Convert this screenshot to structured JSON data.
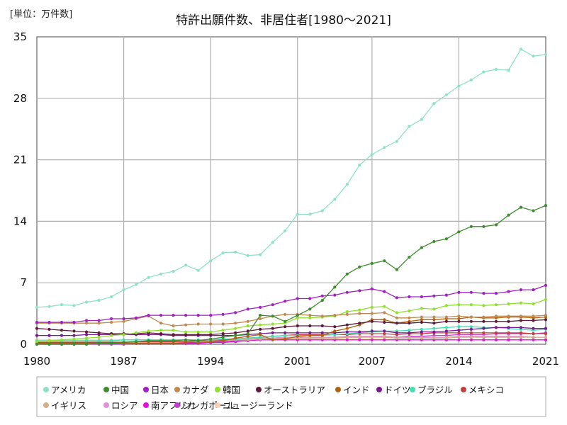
{
  "unit_label": "[単位：万件数]",
  "title": "特許出願件数、非居住者[1980～2021]",
  "chart_data": {
    "type": "line",
    "title": "特許出願件数、非居住者[1980～2021]",
    "unit": "[単位：万件数]",
    "xlabel": "",
    "ylabel": "",
    "xlim": [
      1980,
      2021
    ],
    "ylim": [
      0,
      35
    ],
    "grid": true,
    "legend_position": "bottom",
    "x_ticks": [
      1980,
      1987,
      1994,
      2001,
      2007,
      2014,
      2021
    ],
    "y_ticks": [
      0,
      7,
      14,
      21,
      28,
      35
    ],
    "x": [
      1980,
      1981,
      1982,
      1983,
      1984,
      1985,
      1986,
      1987,
      1988,
      1989,
      1990,
      1991,
      1992,
      1993,
      1994,
      1995,
      1996,
      1997,
      1998,
      1999,
      2000,
      2001,
      2002,
      2003,
      2004,
      2005,
      2006,
      2007,
      2008,
      2009,
      2010,
      2011,
      2012,
      2013,
      2014,
      2015,
      2016,
      2017,
      2018,
      2019,
      2020,
      2021
    ],
    "series": [
      {
        "name": "アメリカ",
        "color": "#8fe3c4",
        "values": [
          4.2,
          4.3,
          4.5,
          4.4,
          4.8,
          5.0,
          5.4,
          6.2,
          6.8,
          7.6,
          8.0,
          8.3,
          9.0,
          8.4,
          9.5,
          10.4,
          10.5,
          10.1,
          10.2,
          11.6,
          12.9,
          14.8,
          14.8,
          15.2,
          16.5,
          18.2,
          20.4,
          21.6,
          22.4,
          23.1,
          24.8,
          25.6,
          27.4,
          28.4,
          29.4,
          30.1,
          31.0,
          31.3,
          31.2,
          33.6,
          32.8,
          33.0
        ]
      },
      {
        "name": "中国",
        "color": "#3d8c2e",
        "values": [
          0.0,
          0.0,
          0.0,
          0.0,
          0.0,
          0.1,
          0.1,
          0.2,
          0.3,
          0.4,
          0.4,
          0.4,
          0.5,
          0.4,
          0.6,
          0.8,
          1.0,
          1.2,
          3.3,
          3.2,
          2.6,
          3.3,
          4.0,
          5.0,
          6.5,
          8.0,
          8.8,
          9.2,
          9.5,
          8.5,
          9.9,
          11.0,
          11.7,
          12.0,
          12.8,
          13.4,
          13.4,
          13.6,
          14.7,
          15.6,
          15.2,
          15.8
        ]
      },
      {
        "name": "日本",
        "color": "#a020c0",
        "values": [
          2.5,
          2.5,
          2.5,
          2.5,
          2.7,
          2.7,
          2.9,
          2.9,
          3.0,
          3.3,
          3.3,
          3.3,
          3.3,
          3.3,
          3.3,
          3.4,
          3.6,
          4.0,
          4.2,
          4.5,
          4.9,
          5.2,
          5.2,
          5.5,
          5.6,
          5.9,
          6.1,
          6.3,
          6.0,
          5.3,
          5.4,
          5.4,
          5.5,
          5.6,
          5.9,
          5.9,
          5.8,
          5.8,
          6.0,
          6.2,
          6.2,
          6.7
        ]
      },
      {
        "name": "カナダ",
        "color": "#c08a50",
        "values": [
          2.4,
          2.4,
          2.4,
          2.4,
          2.4,
          2.4,
          2.5,
          2.6,
          2.9,
          3.2,
          2.4,
          2.1,
          2.2,
          2.3,
          2.3,
          2.3,
          2.4,
          2.6,
          2.9,
          3.2,
          3.4,
          3.4,
          3.3,
          3.2,
          3.3,
          3.4,
          3.5,
          3.5,
          3.6,
          3.0,
          3.0,
          3.1,
          3.1,
          3.1,
          3.2,
          3.1,
          3.1,
          3.2,
          3.2,
          3.2,
          3.2,
          3.3
        ]
      },
      {
        "name": "韓国",
        "color": "#90e030",
        "values": [
          0.3,
          0.4,
          0.5,
          0.6,
          0.7,
          0.8,
          1.0,
          1.1,
          1.3,
          1.5,
          1.6,
          1.6,
          1.4,
          1.4,
          1.4,
          1.6,
          1.8,
          2.1,
          2.2,
          2.3,
          2.4,
          3.0,
          3.0,
          3.1,
          3.2,
          3.7,
          3.9,
          4.2,
          4.3,
          3.6,
          3.8,
          4.1,
          4.0,
          4.4,
          4.5,
          4.5,
          4.4,
          4.5,
          4.6,
          4.7,
          4.6,
          5.1
        ]
      },
      {
        "name": "オーストラリア",
        "color": "#5c1a3a",
        "values": [
          1.8,
          1.7,
          1.6,
          1.5,
          1.4,
          1.3,
          1.2,
          1.2,
          1.2,
          1.3,
          1.2,
          1.1,
          1.1,
          1.1,
          1.1,
          1.2,
          1.3,
          1.5,
          1.7,
          1.8,
          2.0,
          2.1,
          2.1,
          2.1,
          2.0,
          2.2,
          2.4,
          2.6,
          2.5,
          2.4,
          2.4,
          2.5,
          2.4,
          2.6,
          2.6,
          2.6,
          2.6,
          2.6,
          2.6,
          2.7,
          2.7,
          2.8
        ]
      },
      {
        "name": "インド",
        "color": "#b06010",
        "values": [
          0.1,
          0.1,
          0.1,
          0.1,
          0.1,
          0.1,
          0.1,
          0.1,
          0.1,
          0.1,
          0.1,
          0.1,
          0.2,
          0.2,
          0.3,
          0.4,
          0.7,
          0.9,
          1.1,
          0.5,
          0.6,
          0.9,
          1.0,
          1.0,
          1.5,
          1.8,
          2.2,
          2.8,
          2.8,
          2.4,
          2.6,
          2.8,
          2.8,
          2.9,
          2.9,
          3.1,
          3.0,
          3.0,
          3.1,
          3.1,
          3.0,
          3.1
        ]
      },
      {
        "name": "ドイツ",
        "color": "#7a1890",
        "values": [
          1.0,
          1.0,
          1.0,
          1.0,
          1.1,
          1.1,
          1.1,
          1.1,
          1.1,
          1.1,
          1.1,
          1.0,
          1.0,
          1.0,
          1.0,
          1.0,
          1.0,
          1.1,
          1.2,
          1.3,
          1.3,
          1.3,
          1.3,
          1.3,
          1.3,
          1.4,
          1.4,
          1.5,
          1.5,
          1.3,
          1.3,
          1.4,
          1.4,
          1.5,
          1.6,
          1.7,
          1.8,
          1.9,
          1.9,
          1.9,
          1.8,
          1.8
        ]
      },
      {
        "name": "ブラジル",
        "color": "#40e0b0",
        "values": [
          0.4,
          0.4,
          0.4,
          0.4,
          0.4,
          0.4,
          0.4,
          0.5,
          0.5,
          0.5,
          0.5,
          0.5,
          0.5,
          0.5,
          0.5,
          0.6,
          0.6,
          0.7,
          0.8,
          0.9,
          1.0,
          1.0,
          1.0,
          1.0,
          1.1,
          1.2,
          1.3,
          1.4,
          1.5,
          1.5,
          1.6,
          1.7,
          1.8,
          1.9,
          2.0,
          2.0,
          1.9,
          1.9,
          1.8,
          1.7,
          1.6,
          1.7
        ]
      },
      {
        "name": "メキシコ",
        "color": "#c04040",
        "values": [
          0.2,
          0.2,
          0.2,
          0.2,
          0.2,
          0.2,
          0.2,
          0.2,
          0.3,
          0.3,
          0.3,
          0.3,
          0.3,
          0.4,
          0.5,
          0.5,
          0.6,
          0.7,
          0.8,
          0.9,
          1.0,
          1.1,
          1.1,
          1.1,
          1.1,
          1.1,
          1.2,
          1.2,
          1.2,
          1.1,
          1.2,
          1.2,
          1.3,
          1.3,
          1.3,
          1.3,
          1.3,
          1.3,
          1.3,
          1.3,
          1.2,
          1.2
        ]
      },
      {
        "name": "イギリス",
        "color": "#d0b088",
        "values": [
          0.3,
          0.3,
          0.3,
          0.3,
          0.3,
          0.3,
          0.3,
          0.3,
          0.3,
          0.3,
          0.3,
          0.3,
          0.3,
          0.3,
          0.4,
          0.4,
          0.5,
          0.5,
          0.6,
          0.6,
          0.7,
          0.7,
          0.7,
          0.7,
          0.7,
          0.8,
          0.8,
          0.8,
          0.8,
          0.7,
          0.7,
          0.7,
          0.7,
          0.7,
          0.8,
          0.8,
          0.8,
          0.8,
          0.8,
          0.8,
          0.8,
          0.8
        ]
      },
      {
        "name": "ロシア",
        "color": "#e090d8",
        "values": [
          0.2,
          0.2,
          0.2,
          0.2,
          0.2,
          0.2,
          0.2,
          0.2,
          0.2,
          0.2,
          0.2,
          0.2,
          0.3,
          0.4,
          0.5,
          0.5,
          0.6,
          0.7,
          0.7,
          0.7,
          0.8,
          0.8,
          0.8,
          0.8,
          0.8,
          0.9,
          0.9,
          0.9,
          0.9,
          0.8,
          0.8,
          0.8,
          0.8,
          0.8,
          0.9,
          0.9,
          0.9,
          0.9,
          0.9,
          0.9,
          0.8,
          0.8
        ]
      },
      {
        "name": "南アフリカ",
        "color": "#e010e0",
        "values": [
          0.1,
          0.1,
          0.1,
          0.1,
          0.1,
          0.1,
          0.1,
          0.1,
          0.1,
          0.1,
          0.1,
          0.1,
          0.1,
          0.1,
          0.2,
          0.2,
          0.3,
          0.4,
          0.5,
          0.5,
          0.5,
          0.5,
          0.5,
          0.5,
          0.5,
          0.5,
          0.5,
          0.5,
          0.5,
          0.5,
          0.5,
          0.5,
          0.5,
          0.5,
          0.5,
          0.5,
          0.5,
          0.5,
          0.5,
          0.5,
          0.5,
          0.5
        ]
      },
      {
        "name": "シンガポール",
        "color": "#c040d0",
        "values": [
          0.0,
          0.0,
          0.0,
          0.0,
          0.0,
          0.0,
          0.0,
          0.0,
          0.1,
          0.1,
          0.1,
          0.1,
          0.1,
          0.2,
          0.2,
          0.3,
          0.4,
          0.5,
          0.6,
          0.6,
          0.7,
          0.7,
          0.7,
          0.7,
          0.7,
          0.8,
          0.8,
          0.9,
          0.9,
          0.8,
          0.9,
          0.9,
          1.0,
          1.0,
          1.1,
          1.1,
          1.1,
          1.2,
          1.2,
          1.2,
          1.2,
          1.3
        ]
      },
      {
        "name": "ニュージーランド",
        "color": "#f8d0b8",
        "values": [
          0.5,
          0.5,
          0.5,
          0.5,
          0.5,
          0.5,
          0.5,
          0.5,
          0.5,
          0.5,
          0.5,
          0.5,
          0.5,
          0.5,
          0.5,
          0.5,
          0.6,
          0.6,
          0.6,
          0.6,
          0.6,
          0.6,
          0.6,
          0.6,
          0.6,
          0.6,
          0.6,
          0.6,
          0.6,
          0.5,
          0.5,
          0.5,
          0.5,
          0.5,
          0.5,
          0.5,
          0.5,
          0.5,
          0.5,
          0.5,
          0.5,
          0.5
        ]
      }
    ]
  }
}
